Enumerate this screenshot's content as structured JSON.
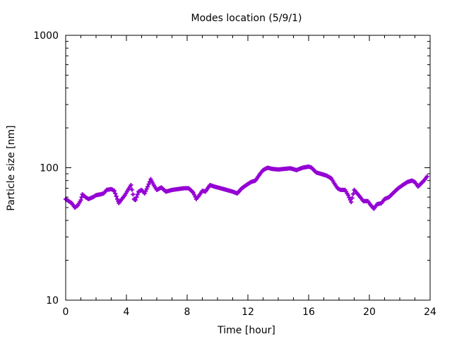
{
  "chart_data": {
    "type": "scatter",
    "title": "Modes location (5/9/1)",
    "xlabel": "Time [hour]",
    "ylabel": "Particle size [nm]",
    "xlim": [
      0,
      24
    ],
    "ylim": [
      10,
      1000
    ],
    "yscale": "log",
    "x_ticks": [
      0,
      4,
      8,
      12,
      16,
      20,
      24
    ],
    "x_tick_labels": [
      "0",
      "4",
      "8",
      "12",
      "16",
      "20",
      "24"
    ],
    "y_ticks": [
      10,
      100,
      1000
    ],
    "y_tick_labels": [
      "10",
      "100",
      "1000"
    ],
    "marker": "plus",
    "color": "#9400d3",
    "grid": false,
    "series": [
      {
        "name": "Modes location",
        "points": [
          [
            0.0,
            58
          ],
          [
            0.2,
            56
          ],
          [
            0.4,
            54
          ],
          [
            0.6,
            50
          ],
          [
            0.8,
            52
          ],
          [
            1.0,
            57
          ],
          [
            1.1,
            63
          ],
          [
            1.3,
            60
          ],
          [
            1.5,
            58
          ],
          [
            1.8,
            60
          ],
          [
            2.0,
            62
          ],
          [
            2.3,
            63
          ],
          [
            2.5,
            64
          ],
          [
            2.7,
            68
          ],
          [
            3.0,
            69
          ],
          [
            3.2,
            67
          ],
          [
            3.4,
            58
          ],
          [
            3.5,
            54
          ],
          [
            3.7,
            58
          ],
          [
            3.9,
            62
          ],
          [
            4.1,
            68
          ],
          [
            4.3,
            74
          ],
          [
            4.5,
            58
          ],
          [
            4.6,
            57
          ],
          [
            4.8,
            66
          ],
          [
            5.0,
            68
          ],
          [
            5.2,
            64
          ],
          [
            5.4,
            72
          ],
          [
            5.6,
            82
          ],
          [
            5.8,
            74
          ],
          [
            6.0,
            68
          ],
          [
            6.3,
            71
          ],
          [
            6.6,
            66
          ],
          [
            7.0,
            68
          ],
          [
            7.4,
            69
          ],
          [
            7.8,
            70
          ],
          [
            8.1,
            70
          ],
          [
            8.4,
            65
          ],
          [
            8.6,
            58
          ],
          [
            8.8,
            62
          ],
          [
            9.0,
            67
          ],
          [
            9.2,
            66
          ],
          [
            9.5,
            74
          ],
          [
            9.8,
            72
          ],
          [
            10.2,
            70
          ],
          [
            10.6,
            68
          ],
          [
            11.0,
            66
          ],
          [
            11.3,
            64
          ],
          [
            11.6,
            70
          ],
          [
            11.9,
            74
          ],
          [
            12.2,
            78
          ],
          [
            12.5,
            80
          ],
          [
            12.8,
            90
          ],
          [
            13.0,
            96
          ],
          [
            13.3,
            100
          ],
          [
            13.6,
            98
          ],
          [
            14.0,
            97
          ],
          [
            14.4,
            98
          ],
          [
            14.8,
            99
          ],
          [
            15.2,
            96
          ],
          [
            15.6,
            100
          ],
          [
            16.0,
            102
          ],
          [
            16.2,
            100
          ],
          [
            16.5,
            92
          ],
          [
            16.8,
            90
          ],
          [
            17.2,
            87
          ],
          [
            17.5,
            83
          ],
          [
            17.7,
            76
          ],
          [
            17.9,
            70
          ],
          [
            18.1,
            68
          ],
          [
            18.4,
            68
          ],
          [
            18.6,
            62
          ],
          [
            18.8,
            55
          ],
          [
            19.0,
            68
          ],
          [
            19.2,
            64
          ],
          [
            19.4,
            60
          ],
          [
            19.6,
            56
          ],
          [
            19.9,
            56
          ],
          [
            20.1,
            52
          ],
          [
            20.3,
            49
          ],
          [
            20.5,
            53
          ],
          [
            20.8,
            54
          ],
          [
            21.0,
            58
          ],
          [
            21.3,
            60
          ],
          [
            21.6,
            65
          ],
          [
            21.9,
            70
          ],
          [
            22.2,
            74
          ],
          [
            22.5,
            78
          ],
          [
            22.8,
            80
          ],
          [
            23.0,
            78
          ],
          [
            23.2,
            72
          ],
          [
            23.4,
            76
          ],
          [
            23.6,
            80
          ],
          [
            23.8,
            86
          ]
        ]
      }
    ]
  }
}
